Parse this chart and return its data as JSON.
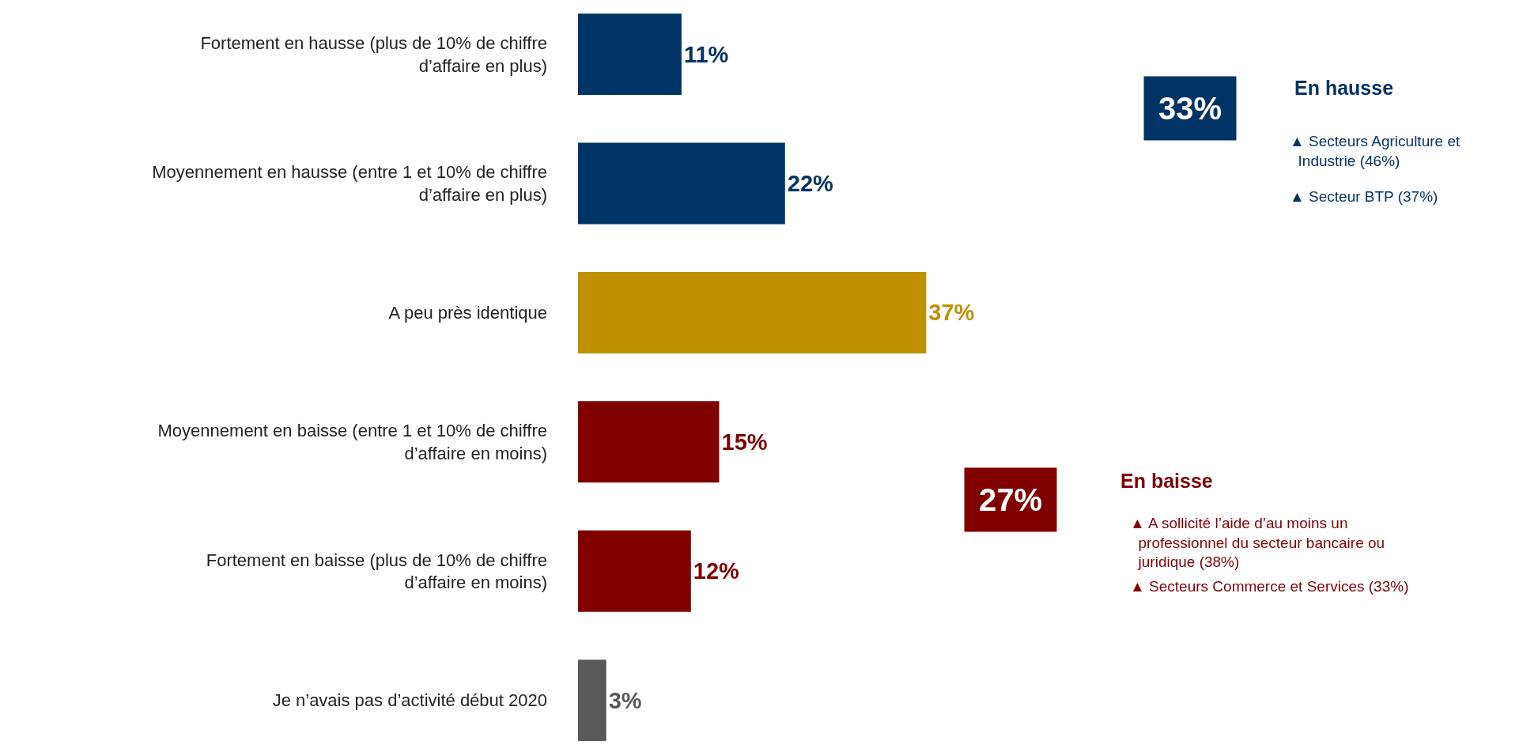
{
  "chart_data": {
    "type": "bar",
    "orientation": "horizontal",
    "categories": [
      "Fortement en hausse (plus de 10% de chiffre d’affaire en plus)",
      "Moyennement en hausse (entre 1 et 10% de chiffre d’affaire en plus)",
      "A peu près identique",
      "Moyennement en baisse (entre 1 et 10% de chiffre d’affaire en moins)",
      "Fortement en baisse (plus de 10% de chiffre d’affaire en moins)",
      "Je n’avais pas d’activité début 2020"
    ],
    "values": [
      11,
      22,
      37,
      15,
      12,
      3
    ],
    "value_labels": [
      "11%",
      "22%",
      "37%",
      "15%",
      "12%",
      "3%"
    ],
    "colors": [
      "#003366",
      "#003366",
      "#bf9000",
      "#800000",
      "#800000",
      "#595959"
    ],
    "xlim": [
      0,
      100
    ],
    "tick_labels": "y",
    "annotations": [
      "33%",
      "En hausse",
      "▲ Secteurs Agriculture et Industrie (46%)",
      "▲ Secteur BTP (37%)",
      "27%",
      "En baisse",
      "▲ A sollicité l’aide d’au moins un professionnel du secteur bancaire ou juridique (38%)",
      "▲ Secteurs Commerce et Services (33%)"
    ]
  }
}
